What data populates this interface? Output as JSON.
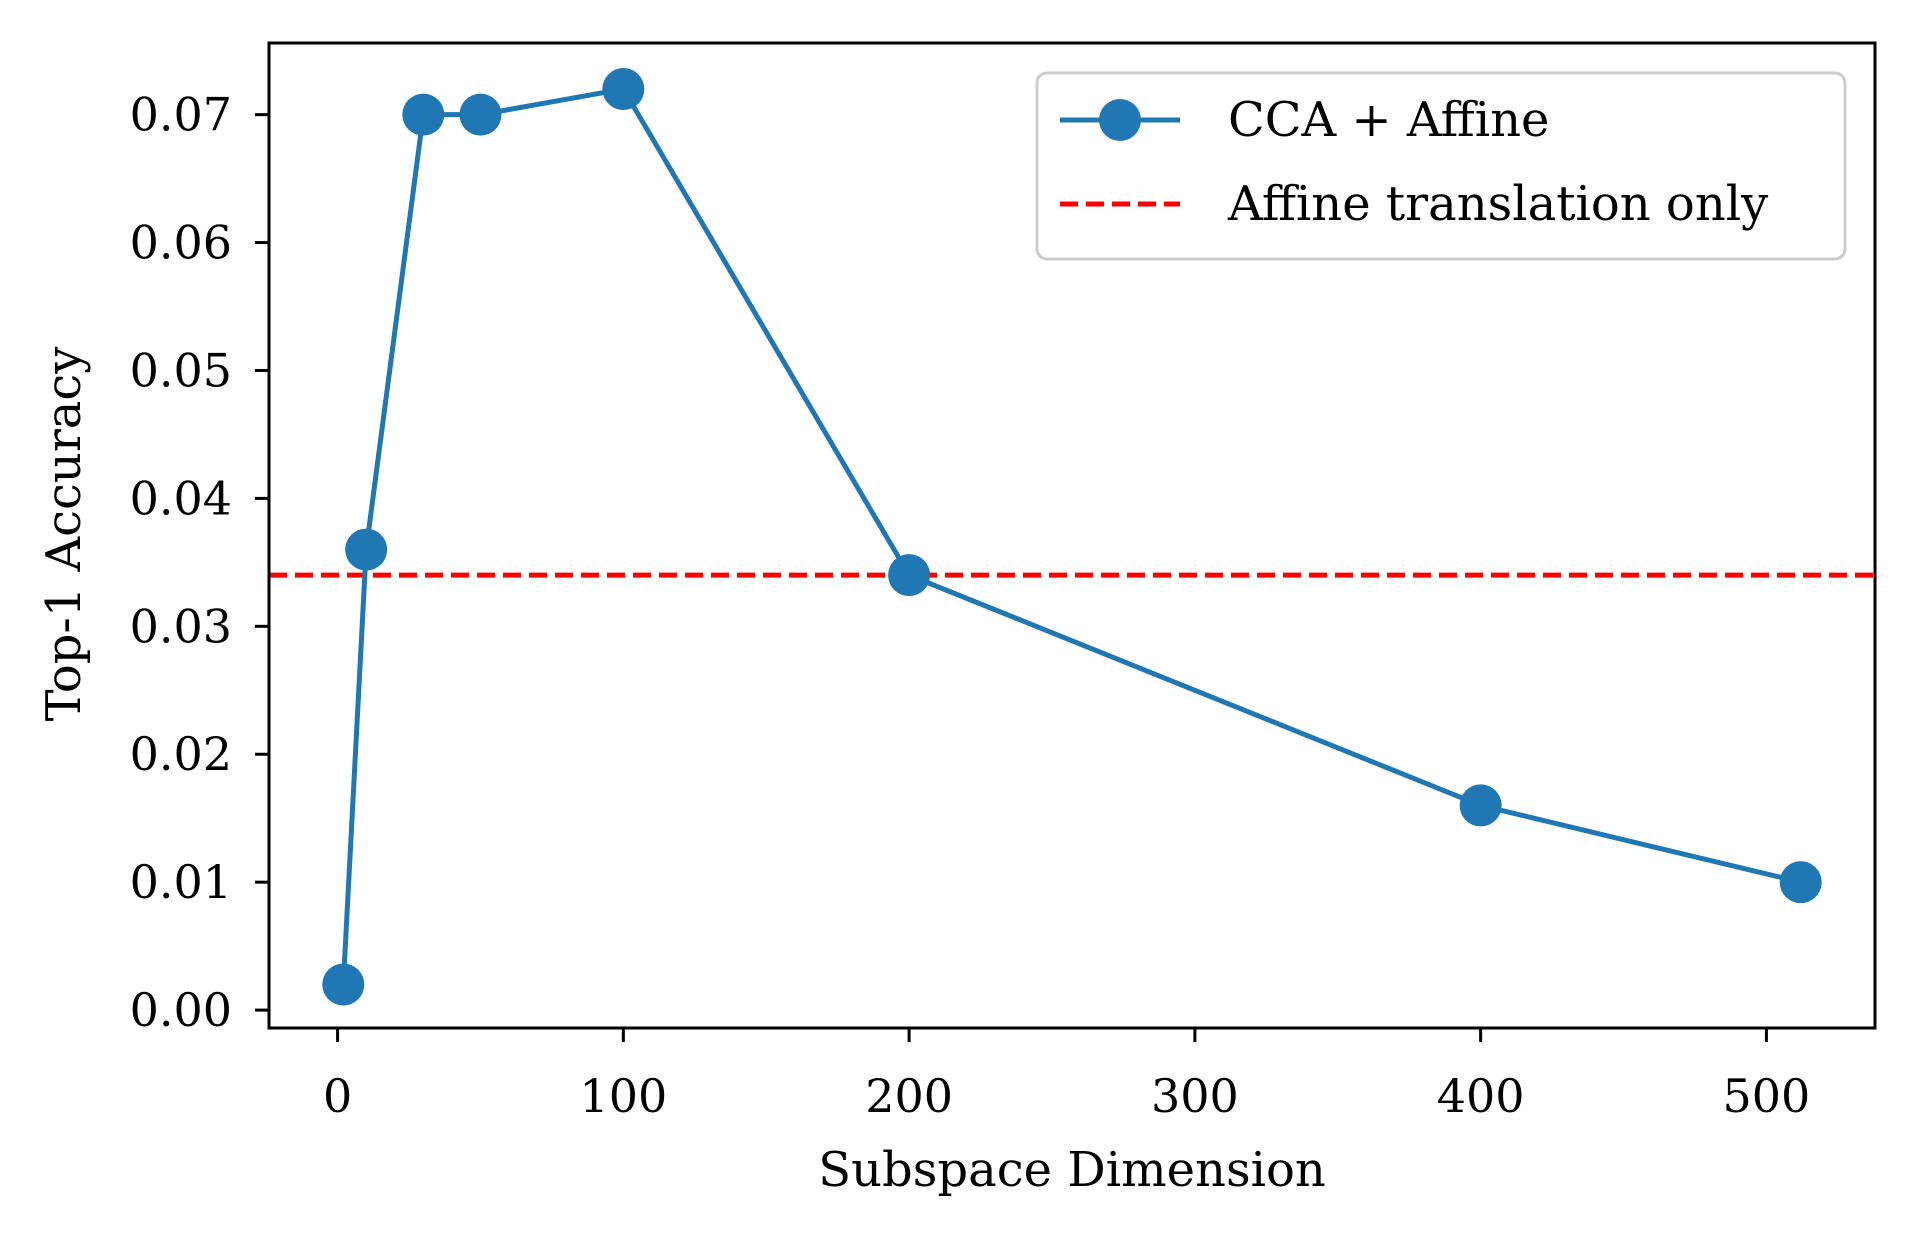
{
  "chart_data": {
    "type": "line",
    "title": "",
    "xlabel": "Subspace Dimension",
    "ylabel": "Top-1 Accuracy",
    "xlim": [
      -24,
      538
    ],
    "ylim": [
      -0.0014,
      0.0756
    ],
    "xticks": [
      0,
      100,
      200,
      300,
      400,
      500
    ],
    "xtick_labels": [
      "0",
      "100",
      "200",
      "300",
      "400",
      "500"
    ],
    "yticks": [
      0.0,
      0.01,
      0.02,
      0.03,
      0.04,
      0.05,
      0.06,
      0.07
    ],
    "ytick_labels": [
      "0.00",
      "0.01",
      "0.02",
      "0.03",
      "0.04",
      "0.05",
      "0.06",
      "0.07"
    ],
    "grid": false,
    "legend_position": "top-right",
    "series": [
      {
        "name": "CCA + Affine",
        "color": "#1f77b4",
        "style": "solid-line-with-circle-markers",
        "x": [
          2,
          10,
          30,
          50,
          100,
          200,
          400,
          512
        ],
        "y": [
          0.002,
          0.036,
          0.07,
          0.07,
          0.072,
          0.034,
          0.016,
          0.01
        ]
      },
      {
        "name": "Affine translation only",
        "color": "#ff0000",
        "style": "dashed-horizontal-line",
        "y": 0.034
      }
    ]
  }
}
